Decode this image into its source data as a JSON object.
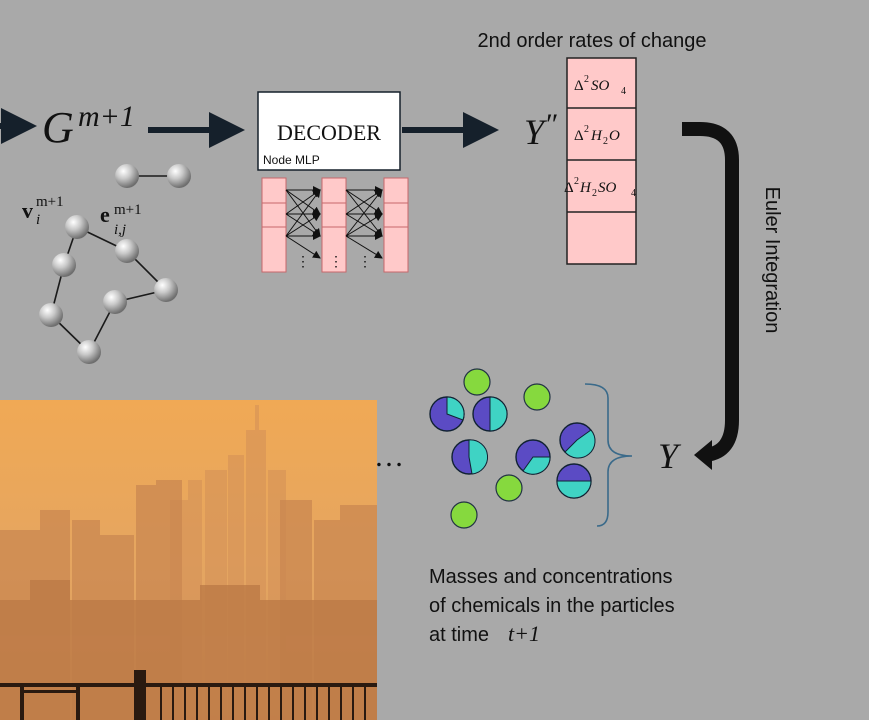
{
  "graph_label": {
    "base": "G",
    "sup": "m+1"
  },
  "node_label": {
    "base": "v",
    "sub": "i",
    "sup": "m+1"
  },
  "edge_label": {
    "base": "e",
    "sub": "i,j",
    "sup": "m+1"
  },
  "decoder": {
    "title": "DECODER",
    "subtitle": "Node MLP"
  },
  "output_label": {
    "base": "Y",
    "prime": "″"
  },
  "rates_title": "2nd order rates of change",
  "rates_rows": [
    {
      "delta": "Δ",
      "sup": "2",
      "term": "SO",
      "sub": "4",
      "after": ""
    },
    {
      "delta": "Δ",
      "sup": "2",
      "term": "H",
      "sub": "2",
      "after": "O"
    },
    {
      "delta": "Δ",
      "sup": "2",
      "term": "H",
      "sub": "2",
      "after": "SO",
      "sub2": "4"
    }
  ],
  "integration_label": "Euler Integration",
  "result_label": "Y",
  "ellipsis": "…",
  "caption": {
    "line1": "Masses and concentrations",
    "line2": "of chemicals in the particles",
    "line3_prefix": "at time ",
    "line3_var": "t+1"
  },
  "colors": {
    "background": "#a9a9a9",
    "arrow": "#15202b",
    "pink_cell": "#ffc9c9",
    "pink_stroke": "#c7676a",
    "purple": "#5b4bc4",
    "teal": "#3fd3c4",
    "green": "#86d93e",
    "brace": "#3a6a8a",
    "haze": "#e8a65a"
  }
}
